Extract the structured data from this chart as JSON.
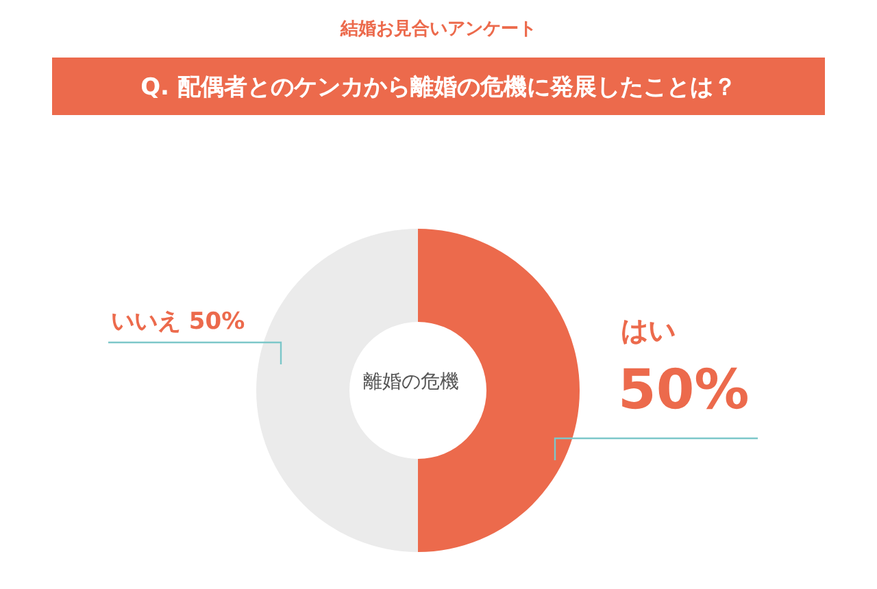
{
  "chart_data": {
    "type": "donut",
    "subtitle": "結婚お見合いアンケート",
    "title": "Q. 配偶者とのケンカから離婚の危機に発展したことは？",
    "categories": [
      "はい",
      "いいえ"
    ],
    "values": [
      50,
      50
    ],
    "colors": [
      "#ec6a4c",
      "#ebebeb"
    ],
    "value_labels": [
      "50%",
      "50%"
    ],
    "annotations": [
      "離婚の危機"
    ],
    "legend": false
  }
}
